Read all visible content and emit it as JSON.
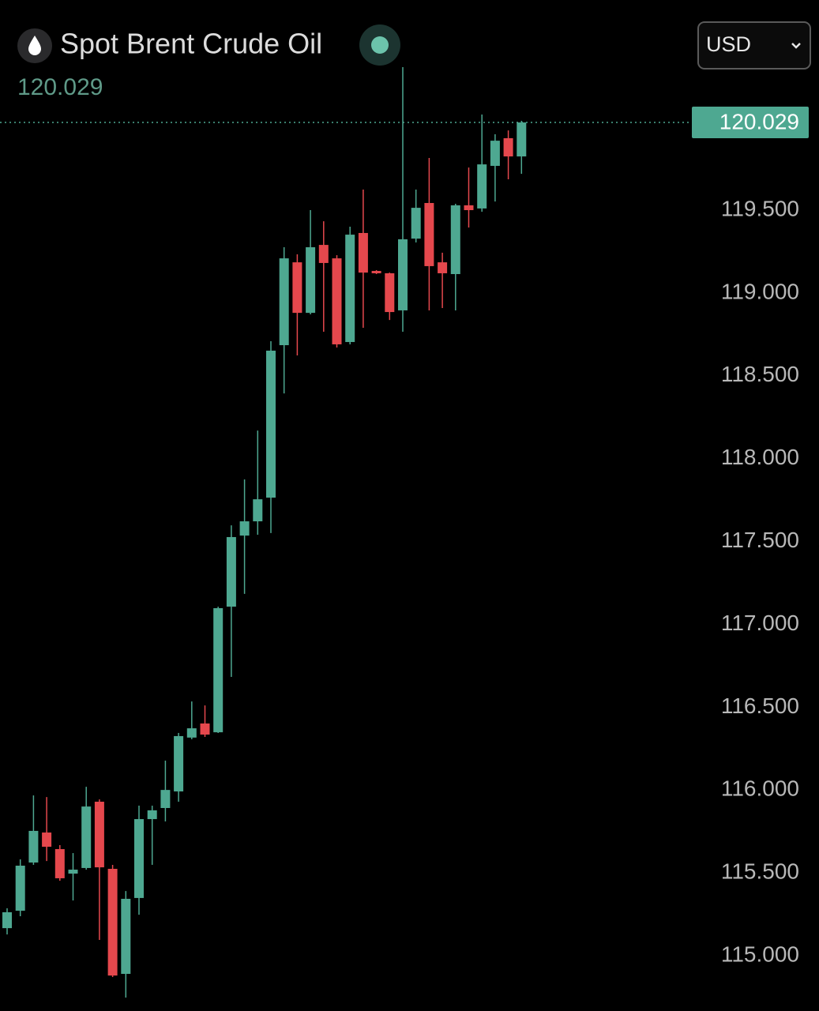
{
  "chart_data": {
    "type": "candlestick",
    "title": "Spot Brent Crude Oil",
    "currency": "USD",
    "last_price": 120.029,
    "up_color": "#4ea891",
    "down_color": "#e5484d",
    "ylim": [
      114.667,
      120.768
    ],
    "yticks": [
      {
        "value": 115,
        "label": "115.000"
      },
      {
        "value": 115.5,
        "label": "115.500"
      },
      {
        "value": 116,
        "label": "116.000"
      },
      {
        "value": 116.5,
        "label": "116.500"
      },
      {
        "value": 117,
        "label": "117.000"
      },
      {
        "value": 117.5,
        "label": "117.500"
      },
      {
        "value": 118,
        "label": "118.000"
      },
      {
        "value": 118.5,
        "label": "118.500"
      },
      {
        "value": 119,
        "label": "119.000"
      },
      {
        "value": 119.5,
        "label": "119.500"
      }
    ],
    "open": [
      115.167,
      115.272,
      115.563,
      115.744,
      115.644,
      115.496,
      115.53,
      115.93,
      115.525,
      114.891,
      115.349,
      115.825,
      115.892,
      115.992,
      116.317,
      116.402,
      116.349,
      117.107,
      117.536,
      117.622,
      117.765,
      118.685,
      119.185,
      118.88,
      119.29,
      119.209,
      118.704,
      119.362,
      119.133,
      119.119,
      118.895,
      119.328,
      119.543,
      119.185,
      119.114,
      119.529,
      119.51,
      119.767,
      119.934,
      119.824
    ],
    "high": [
      115.287,
      115.582,
      115.968,
      115.958,
      115.668,
      115.62,
      116.02,
      115.944,
      115.549,
      115.391,
      115.906,
      115.906,
      116.178,
      116.345,
      116.535,
      116.511,
      117.107,
      117.598,
      117.875,
      118.17,
      118.709,
      119.276,
      119.233,
      119.5,
      119.433,
      119.228,
      119.4,
      119.624,
      119.138,
      119.123,
      120.363,
      119.624,
      119.815,
      119.243,
      119.538,
      119.757,
      120.077,
      119.958,
      119.981,
      120.039
    ],
    "low": [
      115.129,
      115.239,
      115.549,
      115.572,
      115.453,
      115.334,
      115.52,
      115.096,
      114.872,
      114.748,
      115.248,
      115.549,
      115.811,
      115.93,
      116.307,
      116.321,
      116.345,
      116.683,
      117.184,
      117.541,
      117.551,
      118.394,
      118.623,
      118.871,
      118.766,
      118.671,
      118.69,
      118.79,
      119.114,
      118.837,
      118.766,
      119.305,
      118.895,
      118.909,
      118.895,
      119.395,
      119.49,
      119.552,
      119.686,
      119.719
    ],
    "close": [
      115.263,
      115.544,
      115.754,
      115.658,
      115.468,
      115.52,
      115.901,
      115.534,
      114.881,
      115.344,
      115.825,
      115.878,
      116.001,
      116.326,
      116.373,
      116.335,
      117.098,
      117.527,
      117.622,
      117.755,
      118.652,
      119.209,
      118.88,
      119.276,
      119.181,
      118.69,
      119.352,
      119.123,
      119.119,
      118.885,
      119.324,
      119.514,
      119.162,
      119.119,
      119.529,
      119.5,
      119.776,
      119.919,
      119.824,
      120.029
    ]
  }
}
